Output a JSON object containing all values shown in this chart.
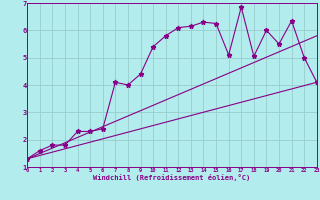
{
  "xlabel": "Windchill (Refroidissement éolien,°C)",
  "background_color": "#b2ecec",
  "grid_color": "#99cccc",
  "line_color": "#880088",
  "xlim": [
    0,
    23
  ],
  "ylim": [
    1.0,
    7.0
  ],
  "xticks": [
    0,
    1,
    2,
    3,
    4,
    5,
    6,
    7,
    8,
    9,
    10,
    11,
    12,
    13,
    14,
    15,
    16,
    17,
    18,
    19,
    20,
    21,
    22,
    23
  ],
  "yticks": [
    1,
    2,
    3,
    4,
    5,
    6,
    7
  ],
  "curve_x": [
    0,
    1,
    2,
    3,
    4,
    5,
    6,
    7,
    8,
    9,
    10,
    11,
    12,
    13,
    14,
    15,
    16,
    17,
    18,
    19,
    20,
    21,
    22,
    23
  ],
  "curve_y": [
    1.3,
    1.6,
    1.8,
    1.8,
    2.3,
    2.3,
    2.4,
    4.1,
    4.0,
    4.4,
    5.4,
    5.8,
    6.1,
    6.15,
    6.3,
    6.25,
    5.1,
    6.85,
    5.05,
    6.0,
    5.5,
    6.35,
    5.0,
    4.1
  ],
  "line1_x": [
    0,
    23
  ],
  "line1_y": [
    1.3,
    4.1
  ],
  "line2_x": [
    0,
    23
  ],
  "line2_y": [
    1.3,
    5.8
  ]
}
